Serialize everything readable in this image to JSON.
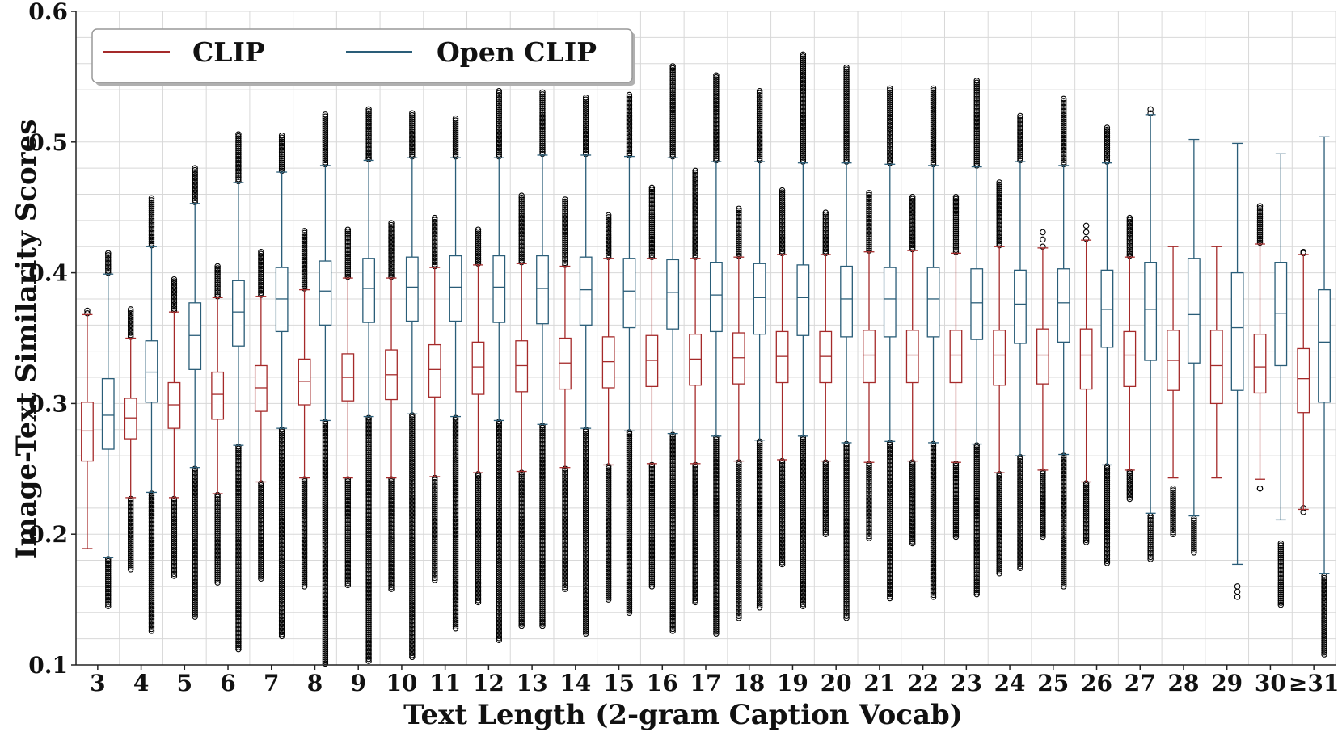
{
  "chart_data": {
    "type": "box",
    "title": "",
    "xlabel": "Text Length (2-gram Caption Vocab)",
    "ylabel": "Image-Text Similarity Scores",
    "ylim": [
      0.1,
      0.6
    ],
    "yticks": [
      "0.1",
      "0.2",
      "0.3",
      "0.4",
      "0.5",
      "0.6"
    ],
    "grid": true,
    "legend_position": "top-left",
    "categories": [
      "3",
      "4",
      "5",
      "6",
      "7",
      "8",
      "9",
      "10",
      "11",
      "12",
      "13",
      "14",
      "15",
      "16",
      "17",
      "18",
      "19",
      "20",
      "21",
      "22",
      "23",
      "24",
      "25",
      "26",
      "27",
      "28",
      "29",
      "30",
      "≥31"
    ],
    "series": [
      {
        "name": "CLIP",
        "color": "#a52a2a",
        "median": [
          0.279,
          0.289,
          0.299,
          0.307,
          0.312,
          0.317,
          0.32,
          0.322,
          0.326,
          0.328,
          0.329,
          0.331,
          0.332,
          0.333,
          0.334,
          0.335,
          0.336,
          0.336,
          0.337,
          0.337,
          0.337,
          0.337,
          0.337,
          0.337,
          0.337,
          0.333,
          0.329,
          0.328,
          0.319
        ],
        "q1": [
          0.256,
          0.273,
          0.281,
          0.288,
          0.294,
          0.299,
          0.302,
          0.303,
          0.305,
          0.307,
          0.309,
          0.311,
          0.312,
          0.313,
          0.314,
          0.315,
          0.316,
          0.316,
          0.316,
          0.316,
          0.316,
          0.314,
          0.315,
          0.311,
          0.313,
          0.31,
          0.3,
          0.308,
          0.293
        ],
        "q3": [
          0.301,
          0.304,
          0.316,
          0.324,
          0.329,
          0.334,
          0.338,
          0.341,
          0.345,
          0.347,
          0.348,
          0.35,
          0.351,
          0.352,
          0.353,
          0.354,
          0.355,
          0.355,
          0.356,
          0.356,
          0.356,
          0.356,
          0.357,
          0.357,
          0.355,
          0.356,
          0.356,
          0.353,
          0.342
        ],
        "wlo": [
          0.189,
          0.228,
          0.228,
          0.231,
          0.24,
          0.243,
          0.243,
          0.243,
          0.244,
          0.247,
          0.248,
          0.251,
          0.253,
          0.254,
          0.254,
          0.256,
          0.257,
          0.256,
          0.255,
          0.256,
          0.255,
          0.247,
          0.249,
          0.24,
          0.249,
          0.243,
          0.243,
          0.242,
          0.219
        ],
        "whi": [
          0.368,
          0.35,
          0.37,
          0.381,
          0.382,
          0.387,
          0.396,
          0.396,
          0.404,
          0.406,
          0.407,
          0.405,
          0.411,
          0.411,
          0.411,
          0.412,
          0.414,
          0.414,
          0.416,
          0.417,
          0.415,
          0.42,
          0.419,
          0.425,
          0.412,
          0.42,
          0.42,
          0.422,
          0.414
        ],
        "outlier_range_low": [
          null,
          [
            0.173,
            0.227
          ],
          [
            0.168,
            0.227
          ],
          [
            0.163,
            0.23
          ],
          [
            0.166,
            0.239
          ],
          [
            0.16,
            0.242
          ],
          [
            0.161,
            0.242
          ],
          [
            0.158,
            0.242
          ],
          [
            0.165,
            0.243
          ],
          [
            0.148,
            0.246
          ],
          [
            0.13,
            0.247
          ],
          [
            0.158,
            0.25
          ],
          [
            0.15,
            0.252
          ],
          [
            0.16,
            0.253
          ],
          [
            0.148,
            0.253
          ],
          [
            0.136,
            0.255
          ],
          [
            0.177,
            0.256
          ],
          [
            0.2,
            0.255
          ],
          [
            0.197,
            0.254
          ],
          [
            0.193,
            0.255
          ],
          [
            0.198,
            0.254
          ],
          [
            0.17,
            0.246
          ],
          [
            0.198,
            0.248
          ],
          [
            0.194,
            0.239
          ],
          [
            0.227,
            0.248
          ],
          [
            0.2,
            0.235
          ],
          null,
          [
            0.235,
            0.235
          ],
          [
            0.217,
            0.22
          ]
        ],
        "outlier_range_high": [
          [
            0.369,
            0.371
          ],
          [
            0.351,
            0.372
          ],
          [
            0.371,
            0.395
          ],
          [
            0.382,
            0.405
          ],
          [
            0.383,
            0.416
          ],
          [
            0.388,
            0.432
          ],
          [
            0.397,
            0.433
          ],
          [
            0.397,
            0.438
          ],
          [
            0.405,
            0.442
          ],
          [
            0.407,
            0.433
          ],
          [
            0.408,
            0.459
          ],
          [
            0.406,
            0.456
          ],
          [
            0.412,
            0.444
          ],
          [
            0.412,
            0.465
          ],
          [
            0.412,
            0.478
          ],
          [
            0.413,
            0.449
          ],
          [
            0.415,
            0.463
          ],
          [
            0.415,
            0.446
          ],
          [
            0.417,
            0.461
          ],
          [
            0.418,
            0.458
          ],
          [
            0.416,
            0.458
          ],
          [
            0.421,
            0.469
          ],
          [
            0.42,
            0.431
          ],
          [
            0.426,
            0.436
          ],
          [
            0.413,
            0.442
          ],
          null,
          null,
          [
            0.423,
            0.451
          ],
          [
            0.415,
            0.416
          ]
        ]
      },
      {
        "name": "Open CLIP",
        "color": "#2a5d78",
        "median": [
          0.291,
          0.324,
          0.352,
          0.37,
          0.38,
          0.386,
          0.388,
          0.389,
          0.389,
          0.389,
          0.388,
          0.387,
          0.386,
          0.385,
          0.383,
          0.381,
          0.381,
          0.38,
          0.38,
          0.38,
          0.377,
          0.376,
          0.377,
          0.372,
          0.372,
          0.368,
          0.358,
          0.369,
          0.347
        ],
        "q1": [
          0.265,
          0.301,
          0.326,
          0.344,
          0.355,
          0.36,
          0.362,
          0.363,
          0.363,
          0.362,
          0.361,
          0.36,
          0.358,
          0.357,
          0.355,
          0.353,
          0.352,
          0.351,
          0.351,
          0.351,
          0.349,
          0.346,
          0.347,
          0.343,
          0.333,
          0.331,
          0.31,
          0.329,
          0.301
        ],
        "q3": [
          0.319,
          0.348,
          0.377,
          0.394,
          0.404,
          0.409,
          0.411,
          0.412,
          0.413,
          0.413,
          0.413,
          0.412,
          0.411,
          0.41,
          0.408,
          0.407,
          0.406,
          0.405,
          0.404,
          0.404,
          0.403,
          0.402,
          0.403,
          0.402,
          0.408,
          0.411,
          0.4,
          0.408,
          0.387
        ],
        "wlo": [
          0.182,
          0.232,
          0.251,
          0.268,
          0.281,
          0.287,
          0.29,
          0.292,
          0.29,
          0.287,
          0.284,
          0.281,
          0.279,
          0.277,
          0.275,
          0.272,
          0.275,
          0.27,
          0.271,
          0.27,
          0.269,
          0.26,
          0.261,
          0.253,
          0.216,
          0.214,
          0.177,
          0.211,
          0.17
        ],
        "whi": [
          0.399,
          0.42,
          0.453,
          0.469,
          0.477,
          0.482,
          0.486,
          0.488,
          0.488,
          0.488,
          0.49,
          0.49,
          0.489,
          0.488,
          0.485,
          0.485,
          0.484,
          0.484,
          0.483,
          0.482,
          0.481,
          0.485,
          0.482,
          0.484,
          0.521,
          0.502,
          0.499,
          0.491,
          0.504
        ],
        "outlier_range_low": [
          [
            0.145,
            0.181
          ],
          [
            0.126,
            0.231
          ],
          [
            0.137,
            0.25
          ],
          [
            0.112,
            0.267
          ],
          [
            0.122,
            0.28
          ],
          [
            0.101,
            0.286
          ],
          [
            0.103,
            0.289
          ],
          [
            0.106,
            0.291
          ],
          [
            0.128,
            0.289
          ],
          [
            0.119,
            0.286
          ],
          [
            0.13,
            0.283
          ],
          [
            0.124,
            0.28
          ],
          [
            0.14,
            0.278
          ],
          [
            0.126,
            0.276
          ],
          [
            0.124,
            0.274
          ],
          [
            0.144,
            0.271
          ],
          [
            0.145,
            0.274
          ],
          [
            0.136,
            0.269
          ],
          [
            0.151,
            0.27
          ],
          [
            0.152,
            0.269
          ],
          [
            0.154,
            0.268
          ],
          [
            0.174,
            0.259
          ],
          [
            0.16,
            0.26
          ],
          [
            0.178,
            0.252
          ],
          [
            0.181,
            0.214
          ],
          [
            0.186,
            0.212
          ],
          [
            0.152,
            0.16
          ],
          [
            0.146,
            0.193
          ],
          [
            0.108,
            0.168
          ]
        ],
        "outlier_range_high": [
          [
            0.4,
            0.415
          ],
          [
            0.421,
            0.457
          ],
          [
            0.454,
            0.48
          ],
          [
            0.47,
            0.506
          ],
          [
            0.478,
            0.505
          ],
          [
            0.483,
            0.521
          ],
          [
            0.487,
            0.525
          ],
          [
            0.489,
            0.522
          ],
          [
            0.489,
            0.518
          ],
          [
            0.489,
            0.539
          ],
          [
            0.491,
            0.538
          ],
          [
            0.491,
            0.534
          ],
          [
            0.49,
            0.536
          ],
          [
            0.489,
            0.558
          ],
          [
            0.486,
            0.551
          ],
          [
            0.486,
            0.539
          ],
          [
            0.485,
            0.567
          ],
          [
            0.485,
            0.557
          ],
          [
            0.484,
            0.541
          ],
          [
            0.483,
            0.541
          ],
          [
            0.482,
            0.547
          ],
          [
            0.486,
            0.52
          ],
          [
            0.483,
            0.533
          ],
          [
            0.485,
            0.511
          ],
          [
            0.522,
            0.525
          ],
          null,
          null,
          null,
          null
        ]
      }
    ]
  }
}
